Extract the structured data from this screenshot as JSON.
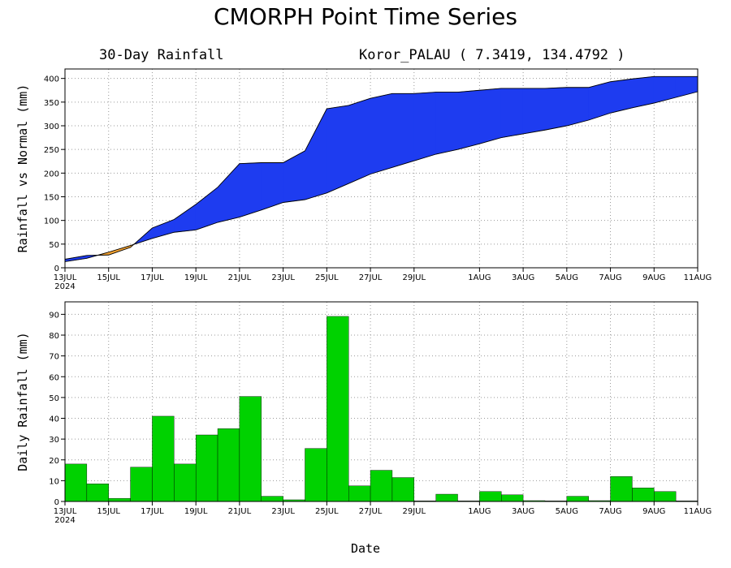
{
  "title": "CMORPH Point Time Series",
  "subtitle_left": "30-Day Rainfall",
  "subtitle_right": "Koror_PALAU ( 7.3419, 134.4792 )",
  "xlabel": "Date",
  "colors": {
    "above_normal": "#1e3cf0",
    "below_normal": "#f0a030",
    "daily": "#00d200",
    "grid": "#9a9a9a"
  },
  "chart_data": [
    {
      "type": "area",
      "title": "",
      "ylabel": "Rainfall vs Normal (mm)",
      "xlim": [
        0,
        29
      ],
      "ylim": [
        0,
        420
      ],
      "yticks": [
        0,
        50,
        100,
        150,
        200,
        250,
        300,
        350,
        400
      ],
      "xtick_positions": [
        0,
        2,
        4,
        6,
        8,
        10,
        12,
        14,
        16,
        19,
        21,
        23,
        25,
        27,
        29
      ],
      "xtick_labels": [
        "13JUL",
        "15JUL",
        "17JUL",
        "19JUL",
        "21JUL",
        "23JUL",
        "25JUL",
        "27JUL",
        "29JUL",
        "1AUG",
        "3AUG",
        "5AUG",
        "7AUG",
        "9AUG",
        "11AUG"
      ],
      "xtick_year": "2024",
      "grid": true,
      "x": [
        "13JUL",
        "14JUL",
        "15JUL",
        "16JUL",
        "17JUL",
        "18JUL",
        "19JUL",
        "20JUL",
        "21JUL",
        "22JUL",
        "23JUL",
        "24JUL",
        "25JUL",
        "26JUL",
        "27JUL",
        "28JUL",
        "29JUL",
        "30JUL",
        "31JUL",
        "1AUG",
        "2AUG",
        "3AUG",
        "4AUG",
        "5AUG",
        "6AUG",
        "7AUG",
        "8AUG",
        "9AUG",
        "10AUG",
        "11AUG"
      ],
      "series": [
        {
          "name": "Actual",
          "values": [
            18,
            26,
            27,
            43,
            84,
            102,
            134,
            170,
            220,
            222,
            222,
            247,
            336,
            343,
            358,
            368,
            368,
            371,
            371,
            375,
            379,
            379,
            379,
            381,
            381,
            393,
            399,
            404,
            404,
            404
          ]
        },
        {
          "name": "Normal",
          "values": [
            13,
            20,
            33,
            47,
            62,
            75,
            80,
            96,
            107,
            122,
            138,
            144,
            158,
            178,
            198,
            212,
            226,
            240,
            250,
            262,
            275,
            283,
            291,
            300,
            312,
            327,
            338,
            348,
            360,
            372
          ]
        }
      ]
    },
    {
      "type": "bar",
      "title": "",
      "ylabel": "Daily Rainfall (mm)",
      "xlim": [
        0,
        29
      ],
      "ylim": [
        0,
        96
      ],
      "yticks": [
        0,
        10,
        20,
        30,
        40,
        50,
        60,
        70,
        80,
        90
      ],
      "xtick_positions": [
        0,
        2,
        4,
        6,
        8,
        10,
        12,
        14,
        16,
        19,
        21,
        23,
        25,
        27,
        29
      ],
      "xtick_labels": [
        "13JUL",
        "15JUL",
        "17JUL",
        "19JUL",
        "21JUL",
        "23JUL",
        "25JUL",
        "27JUL",
        "29JUL",
        "1AUG",
        "3AUG",
        "5AUG",
        "7AUG",
        "9AUG",
        "11AUG"
      ],
      "xtick_year": "2024",
      "grid": true,
      "categories": [
        "13JUL",
        "14JUL",
        "15JUL",
        "16JUL",
        "17JUL",
        "18JUL",
        "19JUL",
        "20JUL",
        "21JUL",
        "22JUL",
        "23JUL",
        "24JUL",
        "25JUL",
        "26JUL",
        "27JUL",
        "28JUL",
        "29JUL",
        "30JUL",
        "31JUL",
        "1AUG",
        "2AUG",
        "3AUG",
        "4AUG",
        "5AUG",
        "6AUG",
        "7AUG",
        "8AUG",
        "9AUG",
        "10AUG"
      ],
      "values": [
        18,
        8.5,
        1.5,
        16.5,
        41,
        18,
        32,
        35,
        50.5,
        2.5,
        0.8,
        25.5,
        89,
        7.5,
        15,
        11.5,
        0.3,
        3.5,
        0.3,
        4.8,
        3.2,
        0.4,
        0.3,
        2.5,
        0.4,
        12,
        6.5,
        4.8,
        0.3
      ]
    }
  ]
}
